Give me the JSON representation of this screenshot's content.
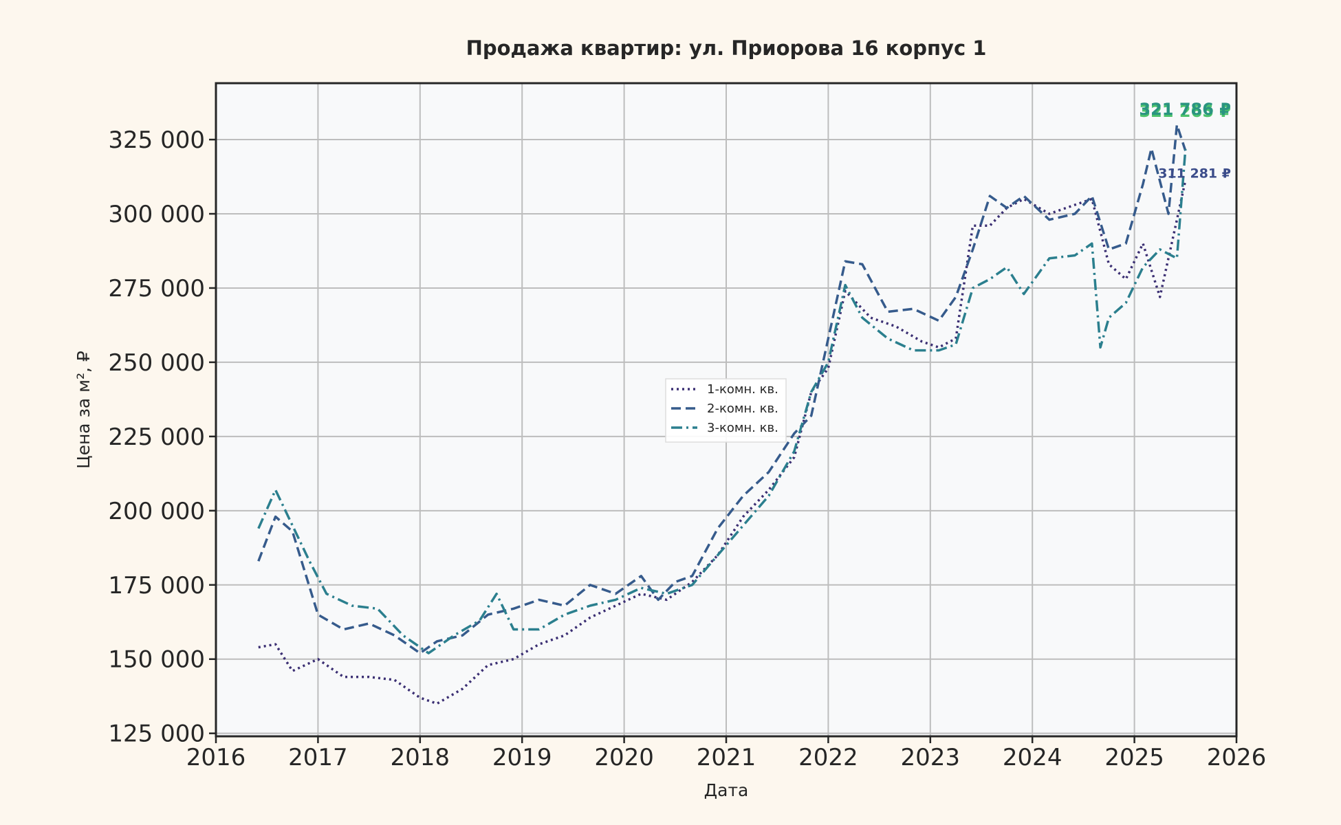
{
  "chart_data": {
    "type": "line",
    "title": "Продажа квартир: ул. Приорова 16 корпус 1",
    "xlabel": "Дата",
    "ylabel": "Цена за м², ₽",
    "xlim": [
      "2016-01-01",
      "2026-01-01"
    ],
    "ylim": [
      124000,
      344000
    ],
    "x_ticks": [
      "2016",
      "2017",
      "2018",
      "2019",
      "2020",
      "2021",
      "2022",
      "2023",
      "2024",
      "2025",
      "2026"
    ],
    "y_ticks": [
      125000,
      150000,
      175000,
      200000,
      225000,
      250000,
      275000,
      300000,
      325000
    ],
    "y_tick_labels": [
      "125 000",
      "150 000",
      "175 000",
      "200 000",
      "225 000",
      "250 000",
      "275 000",
      "300 000",
      "325 000"
    ],
    "grid": true,
    "legend_position": "center",
    "series": [
      {
        "name": "1-комн. кв.",
        "color": "#3b2f73",
        "dash": "dotted",
        "end_label": "311 281 ₽",
        "end_label_color": "#3b4c8a",
        "x": [
          "2016-06",
          "2016-08",
          "2016-10",
          "2017-01",
          "2017-04",
          "2017-07",
          "2017-10",
          "2018-01",
          "2018-03",
          "2018-06",
          "2018-09",
          "2018-12",
          "2019-03",
          "2019-06",
          "2019-09",
          "2019-12",
          "2020-03",
          "2020-06",
          "2020-09",
          "2020-12",
          "2021-03",
          "2021-06",
          "2021-09",
          "2021-11",
          "2022-01",
          "2022-03",
          "2022-06",
          "2022-09",
          "2022-12",
          "2023-02",
          "2023-04",
          "2023-06",
          "2023-08",
          "2023-10",
          "2023-12",
          "2024-03",
          "2024-06",
          "2024-08",
          "2024-10",
          "2024-12",
          "2025-02",
          "2025-04",
          "2025-06",
          "2025-07"
        ],
        "y": [
          154000,
          155000,
          146000,
          150000,
          144000,
          144000,
          143000,
          137000,
          135000,
          140000,
          148000,
          150000,
          155000,
          158000,
          164000,
          168000,
          172000,
          170000,
          176000,
          185000,
          198000,
          207000,
          218000,
          240000,
          248000,
          274000,
          265000,
          262000,
          257000,
          255000,
          258000,
          296000,
          296000,
          302000,
          305000,
          300000,
          303000,
          305000,
          283000,
          278000,
          290000,
          272000,
          298000,
          311281
        ]
      },
      {
        "name": "2-комн. кв.",
        "color": "#365b8c",
        "dash": "dashed",
        "end_label": "321 265 ₽",
        "end_label_color": "#4cc26a",
        "x": [
          "2016-06",
          "2016-08",
          "2016-10",
          "2017-01",
          "2017-04",
          "2017-07",
          "2017-10",
          "2018-01",
          "2018-03",
          "2018-06",
          "2018-09",
          "2018-12",
          "2019-03",
          "2019-06",
          "2019-09",
          "2019-12",
          "2020-03",
          "2020-05",
          "2020-07",
          "2020-09",
          "2020-12",
          "2021-03",
          "2021-06",
          "2021-09",
          "2021-11",
          "2022-01",
          "2022-03",
          "2022-05",
          "2022-08",
          "2022-11",
          "2023-02",
          "2023-04",
          "2023-06",
          "2023-08",
          "2023-10",
          "2023-12",
          "2024-03",
          "2024-06",
          "2024-08",
          "2024-10",
          "2024-12",
          "2025-02",
          "2025-03",
          "2025-05",
          "2025-06",
          "2025-07"
        ],
        "y": [
          183000,
          198000,
          193000,
          165000,
          160000,
          162000,
          158000,
          152000,
          156000,
          158000,
          165000,
          167000,
          170000,
          168000,
          175000,
          172000,
          178000,
          170000,
          176000,
          178000,
          194000,
          205000,
          213000,
          226000,
          232000,
          258000,
          284000,
          283000,
          267000,
          268000,
          264000,
          272000,
          288000,
          306000,
          302000,
          306000,
          298000,
          300000,
          306000,
          288000,
          290000,
          310000,
          322000,
          300000,
          330000,
          321265
        ]
      },
      {
        "name": "3-комн. кв.",
        "color": "#2b7f8e",
        "dash": "dashdot",
        "end_label": "321 786 ₽",
        "end_label_color": "#2a9480",
        "x": [
          "2016-06",
          "2016-08",
          "2016-10",
          "2016-12",
          "2017-02",
          "2017-05",
          "2017-08",
          "2017-11",
          "2018-02",
          "2018-05",
          "2018-08",
          "2018-10",
          "2018-12",
          "2019-03",
          "2019-06",
          "2019-09",
          "2019-12",
          "2020-03",
          "2020-06",
          "2020-09",
          "2020-12",
          "2021-03",
          "2021-06",
          "2021-09",
          "2021-11",
          "2022-01",
          "2022-03",
          "2022-05",
          "2022-08",
          "2022-11",
          "2023-02",
          "2023-04",
          "2023-06",
          "2023-08",
          "2023-10",
          "2023-12",
          "2024-03",
          "2024-06",
          "2024-08",
          "2024-09",
          "2024-10",
          "2024-12",
          "2025-02",
          "2025-04",
          "2025-06",
          "2025-07"
        ],
        "y": [
          194000,
          207000,
          195000,
          183000,
          172000,
          168000,
          167000,
          158000,
          152000,
          158000,
          163000,
          172000,
          160000,
          160000,
          165000,
          168000,
          170000,
          174000,
          172000,
          175000,
          185000,
          195000,
          205000,
          220000,
          240000,
          250000,
          276000,
          265000,
          258000,
          254000,
          254000,
          256000,
          275000,
          278000,
          282000,
          273000,
          285000,
          286000,
          290000,
          255000,
          265000,
          270000,
          282000,
          288000,
          285000,
          321786
        ]
      }
    ]
  }
}
